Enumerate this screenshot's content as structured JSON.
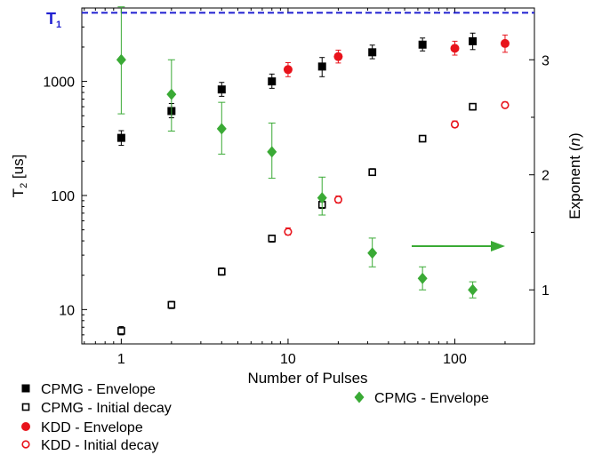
{
  "chart_data": {
    "type": "scatter",
    "x_axis": {
      "label": "Number of Pulses",
      "scale": "log",
      "range": [
        0.58,
        300
      ],
      "ticks": [
        1,
        10,
        100
      ],
      "tick_labels": [
        "1",
        "10",
        "100"
      ]
    },
    "y_axis_left": {
      "label_main": "T",
      "label_sub": "2",
      "label_rest": " [us]",
      "scale": "log",
      "range": [
        5,
        4400
      ],
      "ticks": [
        10,
        100,
        1000
      ],
      "tick_labels": [
        "10",
        "100",
        "1000"
      ]
    },
    "y_axis_right": {
      "label_main": "Exponent (",
      "label_var": "n",
      "label_close": ")",
      "scale": "linear",
      "range": [
        0.53,
        3.45
      ],
      "ticks": [
        1,
        2,
        3
      ],
      "tick_labels": [
        "1",
        "2",
        "3"
      ]
    },
    "reference_line": {
      "label_main": "T",
      "label_sub": "1",
      "value": 4000,
      "color": "#1f1fd0",
      "style": "dashed"
    },
    "annotation": {
      "text": "",
      "type": "arrow",
      "direction": "right",
      "color": "#3aaa35"
    },
    "series": [
      {
        "name": "CPMG - Envelope",
        "axis": "left",
        "marker": "square-filled",
        "color": "#000000",
        "points": [
          {
            "x": 1,
            "y": 320,
            "err_low": 275,
            "err_high": 370
          },
          {
            "x": 2,
            "y": 550,
            "err_low": 480,
            "err_high": 640
          },
          {
            "x": 4,
            "y": 850,
            "err_low": 740,
            "err_high": 980
          },
          {
            "x": 8,
            "y": 1000,
            "err_low": 870,
            "err_high": 1160
          },
          {
            "x": 16,
            "y": 1350,
            "err_low": 1100,
            "err_high": 1620
          },
          {
            "x": 32,
            "y": 1800,
            "err_low": 1580,
            "err_high": 2080
          },
          {
            "x": 64,
            "y": 2100,
            "err_low": 1850,
            "err_high": 2400
          },
          {
            "x": 128,
            "y": 2250,
            "err_low": 1900,
            "err_high": 2650
          }
        ]
      },
      {
        "name": "CPMG - Initial decay",
        "axis": "left",
        "marker": "square-open",
        "color": "#000000",
        "points": [
          {
            "x": 1,
            "y": 6.5,
            "err_low": 6.0,
            "err_high": 7.1
          },
          {
            "x": 2,
            "y": 11,
            "err_low": 10.2,
            "err_high": 11.8
          },
          {
            "x": 4,
            "y": 21.5,
            "err_low": 20.0,
            "err_high": 23.2
          },
          {
            "x": 8,
            "y": 42,
            "err_low": 39,
            "err_high": 45
          },
          {
            "x": 16,
            "y": 83,
            "err_low": 77,
            "err_high": 90
          },
          {
            "x": 32,
            "y": 160,
            "err_low": 150,
            "err_high": 172
          },
          {
            "x": 64,
            "y": 315,
            "err_low": 295,
            "err_high": 335
          },
          {
            "x": 128,
            "y": 600,
            "err_low": 560,
            "err_high": 640
          }
        ]
      },
      {
        "name": "KDD - Envelope",
        "axis": "left",
        "marker": "circle-filled",
        "color": "#e8131b",
        "points": [
          {
            "x": 10,
            "y": 1270,
            "err_low": 1100,
            "err_high": 1460
          },
          {
            "x": 20,
            "y": 1650,
            "err_low": 1450,
            "err_high": 1880
          },
          {
            "x": 100,
            "y": 1950,
            "err_low": 1700,
            "err_high": 2250
          },
          {
            "x": 200,
            "y": 2150,
            "err_low": 1800,
            "err_high": 2550
          }
        ]
      },
      {
        "name": "KDD - Initial decay",
        "axis": "left",
        "marker": "circle-open",
        "color": "#e8131b",
        "points": [
          {
            "x": 10,
            "y": 48,
            "err_low": 45,
            "err_high": 52
          },
          {
            "x": 20,
            "y": 92,
            "err_low": 86,
            "err_high": 99
          },
          {
            "x": 100,
            "y": 420,
            "err_low": 395,
            "err_high": 450
          },
          {
            "x": 200,
            "y": 620,
            "err_low": 585,
            "err_high": 660
          }
        ]
      },
      {
        "name": "CPMG - Envelope",
        "axis": "right",
        "marker": "diamond-filled",
        "color": "#3aaa35",
        "points": [
          {
            "x": 1,
            "y": 3.0,
            "err_low": 2.53,
            "err_high": 3.46
          },
          {
            "x": 2,
            "y": 2.7,
            "err_low": 2.38,
            "err_high": 3.0
          },
          {
            "x": 4,
            "y": 2.4,
            "err_low": 2.18,
            "err_high": 2.63
          },
          {
            "x": 8,
            "y": 2.2,
            "err_low": 1.97,
            "err_high": 2.45
          },
          {
            "x": 16,
            "y": 1.8,
            "err_low": 1.65,
            "err_high": 1.98
          },
          {
            "x": 32,
            "y": 1.32,
            "err_low": 1.2,
            "err_high": 1.45
          },
          {
            "x": 64,
            "y": 1.1,
            "err_low": 1.0,
            "err_high": 1.2
          },
          {
            "x": 128,
            "y": 1.0,
            "err_low": 0.93,
            "err_high": 1.07
          }
        ]
      }
    ],
    "grid": false,
    "legend_left": {
      "placement": "bottom-left",
      "entries": [
        0,
        1,
        2,
        3
      ]
    },
    "legend_right": {
      "placement": "bottom-right",
      "entries": [
        4
      ]
    }
  }
}
